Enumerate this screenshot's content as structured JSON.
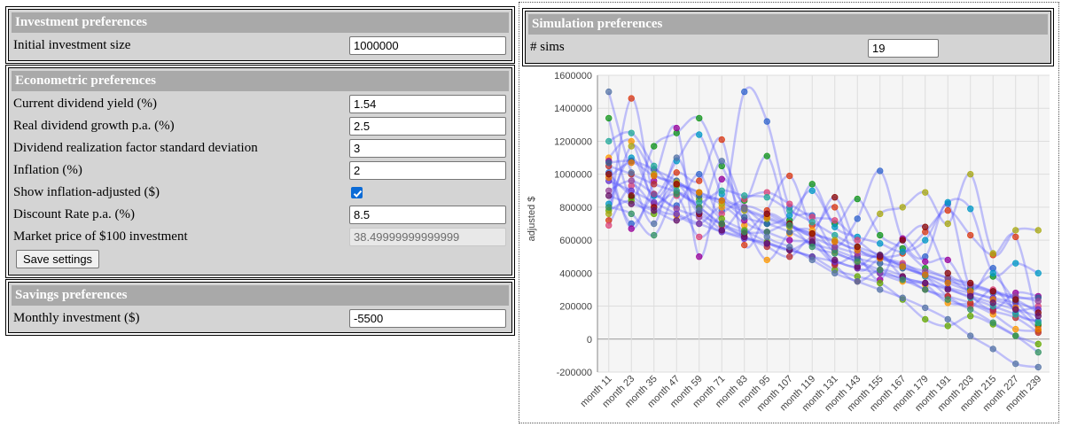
{
  "investment": {
    "header": "Investment preferences",
    "initial_label": "Initial investment size",
    "initial_value": "1000000"
  },
  "econometric": {
    "header": "Econometric preferences",
    "dividend_yield_label": "Current dividend yield (%)",
    "dividend_yield_value": "1.54",
    "dividend_growth_label": "Real dividend growth p.a. (%)",
    "dividend_growth_value": "2.5",
    "realization_sd_label": "Dividend realization factor standard deviation",
    "realization_sd_value": "3",
    "inflation_label": "Inflation (%)",
    "inflation_value": "2",
    "inflation_adjusted_label": "Show inflation-adjusted ($)",
    "inflation_adjusted_checked": true,
    "discount_label": "Discount Rate p.a. (%)",
    "discount_value": "8.5",
    "market_price_label": "Market price of $100 investment",
    "market_price_value": "38.49999999999999",
    "save_button": "Save settings"
  },
  "savings": {
    "header": "Savings preferences",
    "monthly_label": "Monthly investment ($)",
    "monthly_value": "-5500"
  },
  "simulation": {
    "header": "Simulation preferences",
    "sims_label": "# sims",
    "sims_value": "19"
  },
  "chart_data": {
    "type": "line",
    "ylabel": "adjusted $",
    "ylim": [
      -200000,
      1600000
    ],
    "yticks": [
      -200000,
      0,
      200000,
      400000,
      600000,
      800000,
      1000000,
      1200000,
      1400000,
      1600000
    ],
    "categories": [
      "month 11",
      "month 23",
      "month 35",
      "month 47",
      "month 59",
      "month 71",
      "month 83",
      "month 95",
      "month 107",
      "month 119",
      "month 131",
      "month 143",
      "month 155",
      "month 167",
      "month 179",
      "month 191",
      "month 203",
      "month 215",
      "month 227",
      "month 239"
    ],
    "grid": true,
    "series": [
      {
        "color": "#3366cc",
        "values": [
          1010000,
          700000,
          870000,
          810000,
          1000000,
          780000,
          1500000,
          1320000,
          800000,
          750000,
          560000,
          730000,
          1020000,
          600000,
          500000,
          820000,
          310000,
          430000,
          160000,
          110000
        ]
      },
      {
        "color": "#dc3912",
        "values": [
          720000,
          1460000,
          880000,
          1010000,
          960000,
          1210000,
          570000,
          780000,
          990000,
          690000,
          800000,
          430000,
          490000,
          520000,
          650000,
          780000,
          630000,
          510000,
          620000,
          80000
        ]
      },
      {
        "color": "#109618",
        "values": [
          1340000,
          860000,
          1170000,
          1250000,
          1340000,
          1050000,
          840000,
          1110000,
          720000,
          940000,
          700000,
          850000,
          630000,
          550000,
          430000,
          370000,
          300000,
          380000,
          230000,
          90000
        ]
      },
      {
        "color": "#ff9900",
        "values": [
          1100000,
          1200000,
          820000,
          750000,
          700000,
          800000,
          690000,
          480000,
          640000,
          660000,
          530000,
          470000,
          400000,
          350000,
          330000,
          220000,
          210000,
          150000,
          60000,
          50000
        ]
      },
      {
        "color": "#990099",
        "values": [
          1080000,
          670000,
          960000,
          1280000,
          500000,
          970000,
          720000,
          650000,
          600000,
          580000,
          460000,
          500000,
          360000,
          610000,
          470000,
          480000,
          270000,
          180000,
          280000,
          260000
        ]
      },
      {
        "color": "#0099c6",
        "values": [
          820000,
          1100000,
          870000,
          1080000,
          1240000,
          880000,
          800000,
          700000,
          750000,
          900000,
          680000,
          620000,
          580000,
          530000,
          600000,
          830000,
          790000,
          400000,
          460000,
          400000
        ]
      },
      {
        "color": "#dd4477",
        "values": [
          690000,
          930000,
          820000,
          870000,
          620000,
          760000,
          850000,
          890000,
          820000,
          740000,
          720000,
          600000,
          500000,
          460000,
          380000,
          260000,
          200000,
          300000,
          180000,
          200000
        ]
      },
      {
        "color": "#66aa00",
        "values": [
          780000,
          840000,
          760000,
          930000,
          850000,
          730000,
          660000,
          590000,
          540000,
          500000,
          420000,
          380000,
          340000,
          240000,
          120000,
          80000,
          140000,
          90000,
          20000,
          -30000
        ]
      },
      {
        "color": "#b82e2e",
        "values": [
          1050000,
          1000000,
          940000,
          890000,
          800000,
          690000,
          620000,
          560000,
          500000,
          610000,
          450000,
          350000,
          420000,
          380000,
          300000,
          260000,
          220000,
          170000,
          130000,
          40000
        ]
      },
      {
        "color": "#316395",
        "values": [
          1070000,
          1080000,
          1030000,
          960000,
          870000,
          840000,
          740000,
          700000,
          650000,
          580000,
          540000,
          490000,
          460000,
          430000,
          390000,
          350000,
          320000,
          280000,
          250000,
          250000
        ]
      },
      {
        "color": "#994499",
        "values": [
          900000,
          960000,
          880000,
          790000,
          740000,
          660000,
          800000,
          760000,
          690000,
          620000,
          560000,
          520000,
          490000,
          450000,
          410000,
          370000,
          330000,
          290000,
          260000,
          230000
        ]
      },
      {
        "color": "#22aa99",
        "values": [
          1200000,
          1250000,
          1050000,
          900000,
          830000,
          900000,
          870000,
          860000,
          780000,
          710000,
          630000,
          560000,
          510000,
          440000,
          380000,
          310000,
          250000,
          200000,
          150000,
          100000
        ]
      },
      {
        "color": "#aaaa11",
        "values": [
          760000,
          1170000,
          1000000,
          950000,
          890000,
          820000,
          780000,
          730000,
          680000,
          640000,
          600000,
          560000,
          760000,
          800000,
          890000,
          700000,
          1000000,
          520000,
          660000,
          660000
        ]
      },
      {
        "color": "#6633cc",
        "values": [
          960000,
          900000,
          830000,
          760000,
          700000,
          650000,
          610000,
          580000,
          540000,
          500000,
          470000,
          430000,
          400000,
          370000,
          340000,
          310000,
          280000,
          250000,
          220000,
          180000
        ]
      },
      {
        "color": "#e67300",
        "values": [
          980000,
          1070000,
          990000,
          940000,
          890000,
          840000,
          790000,
          740000,
          690000,
          640000,
          590000,
          540000,
          490000,
          440000,
          390000,
          340000,
          290000,
          240000,
          190000,
          60000
        ]
      },
      {
        "color": "#8b0707",
        "values": [
          1000000,
          870000,
          800000,
          940000,
          760000,
          700000,
          640000,
          760000,
          700000,
          640000,
          860000,
          560000,
          500000,
          600000,
          680000,
          400000,
          340000,
          290000,
          240000,
          160000
        ]
      },
      {
        "color": "#651067",
        "values": [
          870000,
          820000,
          780000,
          720000,
          770000,
          660000,
          620000,
          580000,
          540000,
          590000,
          480000,
          440000,
          510000,
          380000,
          340000,
          300000,
          260000,
          220000,
          180000,
          140000
        ]
      },
      {
        "color": "#329262",
        "values": [
          800000,
          760000,
          630000,
          880000,
          800000,
          700000,
          650000,
          650000,
          690000,
          560000,
          520000,
          470000,
          420000,
          360000,
          300000,
          240000,
          180000,
          100000,
          20000,
          -80000
        ]
      },
      {
        "color": "#5574a6",
        "values": [
          1500000,
          1010000,
          700000,
          1100000,
          780000,
          1080000,
          790000,
          620000,
          560000,
          480000,
          400000,
          350000,
          300000,
          250000,
          190000,
          120000,
          20000,
          -60000,
          -150000,
          -170000
        ]
      }
    ]
  }
}
